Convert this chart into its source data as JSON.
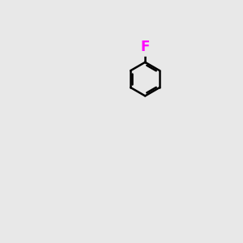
{
  "bg_color": "#e8e8e8",
  "bond_color": "#000000",
  "atom_colors": {
    "F": "#ff00ff",
    "O": "#ff0000",
    "N": "#0000ff",
    "S": "#cccc00",
    "H": "#008080",
    "C": "#000000"
  },
  "font_size": 11,
  "linewidth": 1.8
}
